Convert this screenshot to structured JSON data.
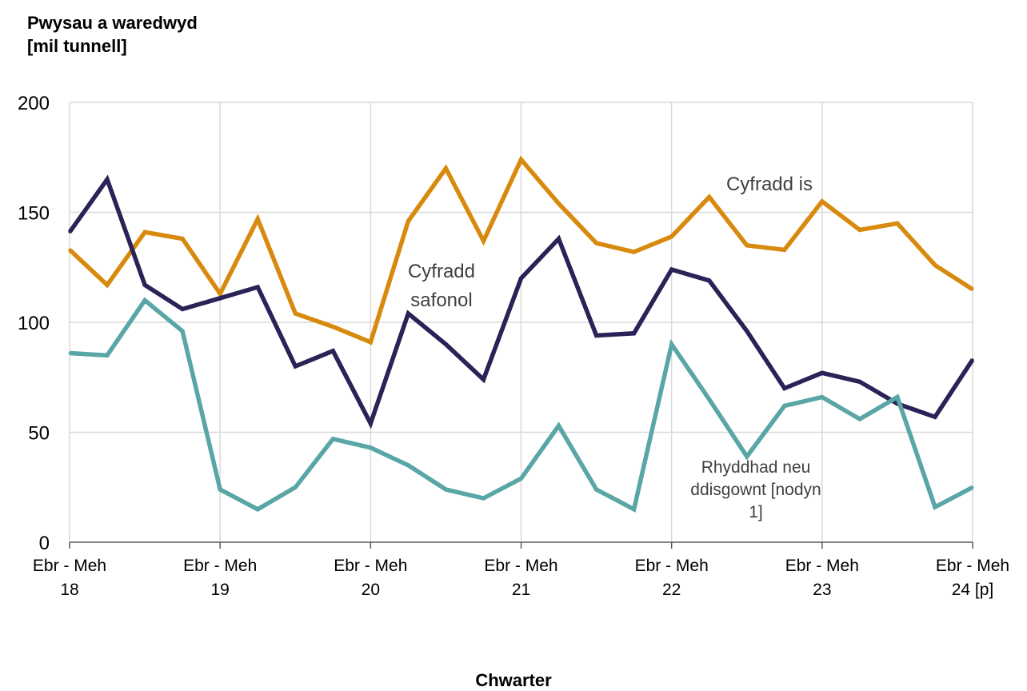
{
  "chart_data": {
    "type": "line",
    "ylabel_lines": [
      "Pwysau a waredwyd",
      "[mil tunnell]"
    ],
    "xlabel": "Chwarter",
    "ylim": [
      0,
      200
    ],
    "yticks": [
      0,
      50,
      100,
      150,
      200
    ],
    "grid": true,
    "x_tick_labels": [
      [
        "Ebr - Meh",
        "18"
      ],
      [
        "Ebr - Meh",
        "19"
      ],
      [
        "Ebr - Meh",
        "20"
      ],
      [
        "Ebr - Meh",
        "21"
      ],
      [
        "Ebr - Meh",
        "22"
      ],
      [
        "Ebr - Meh",
        "23"
      ],
      [
        "Ebr - Meh",
        "24 [p]"
      ]
    ],
    "quarters_per_label": 4,
    "series": [
      {
        "name_lines": [
          "Cyfradd is"
        ],
        "color": "#d88a0e",
        "values": [
          133,
          117,
          141,
          138,
          113,
          147,
          104,
          98,
          91,
          146,
          170,
          137,
          174,
          154,
          136,
          132,
          139,
          157,
          135,
          133,
          155,
          142,
          145,
          126,
          115
        ]
      },
      {
        "name_lines": [
          "Cyfradd",
          "safonol"
        ],
        "color": "#2b2358",
        "values": [
          141,
          165,
          117,
          106,
          111,
          116,
          80,
          87,
          54,
          104,
          90,
          74,
          120,
          138,
          94,
          95,
          124,
          119,
          96,
          70,
          77,
          73,
          63,
          57,
          83
        ]
      },
      {
        "name_lines": [
          "Rhyddhad neu",
          "ddisgownt [nodyn",
          "1]"
        ],
        "color": "#5aa6a6",
        "values": [
          86,
          85,
          110,
          96,
          24,
          15,
          25,
          47,
          43,
          35,
          24,
          20,
          29,
          53,
          24,
          15,
          90,
          65,
          39,
          62,
          66,
          56,
          66,
          16,
          25
        ]
      }
    ]
  }
}
